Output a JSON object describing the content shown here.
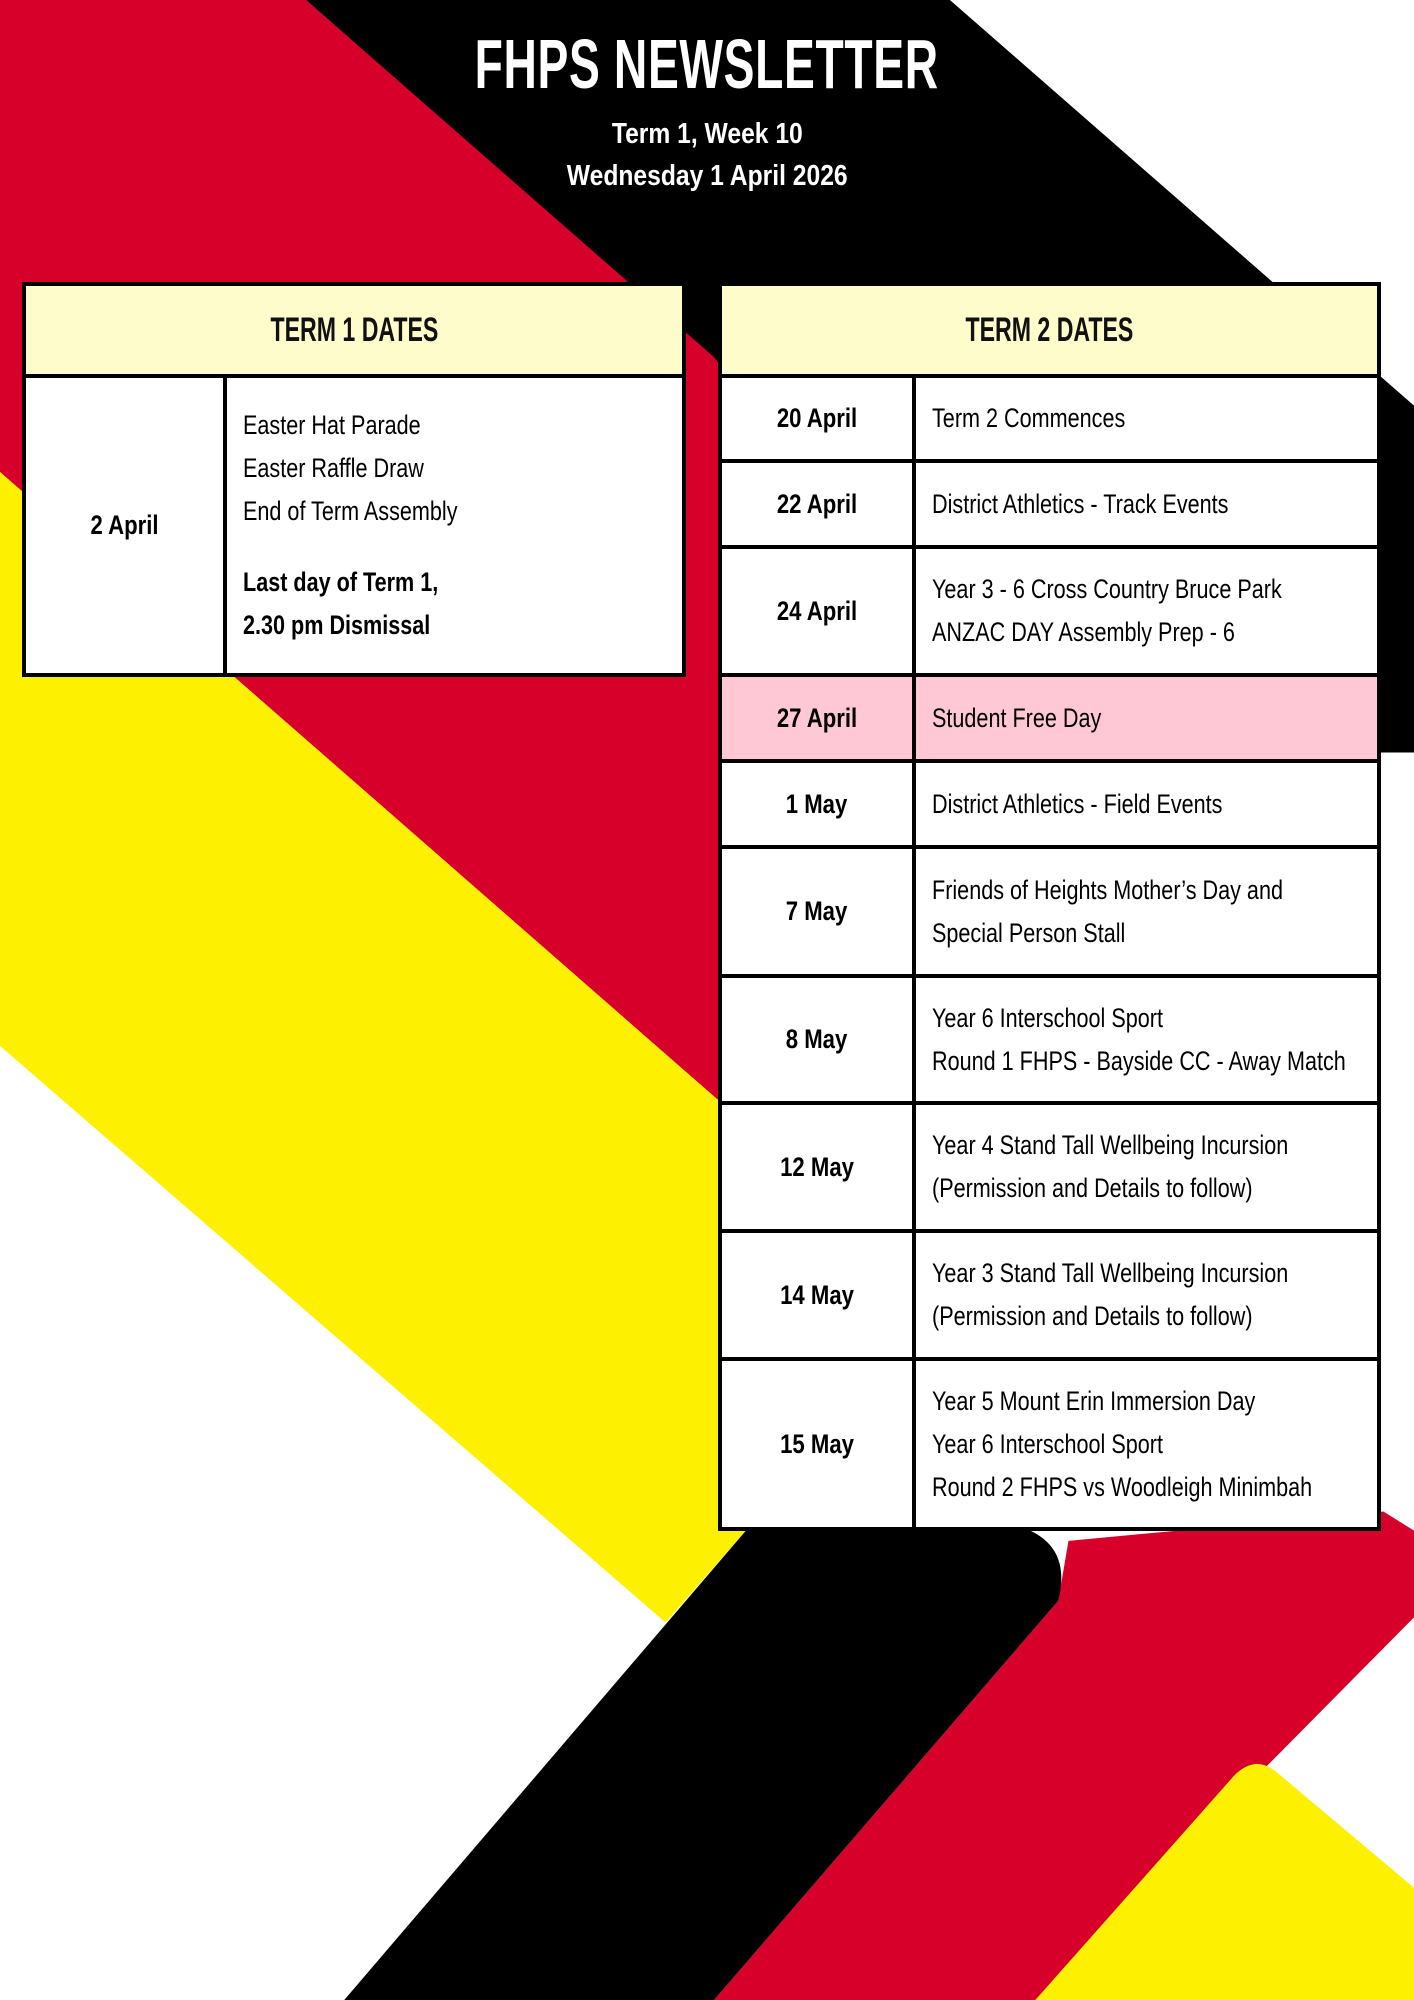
{
  "colors": {
    "red": "#d7002b",
    "black": "#000000",
    "yellow": "#fdf000",
    "header_bg": "#fffccc",
    "highlight": "#ffc8d4"
  },
  "header": {
    "title": "FHPS NEWSLETTER",
    "term": "Term  1, Week 10",
    "date": "Wednesday 1 April  2026"
  },
  "term1": {
    "title": "TERM 1 DATES",
    "rows": [
      {
        "date": "2 April",
        "events": [
          "Easter Hat Parade",
          "Easter Raffle Draw",
          "End of Term Assembly"
        ],
        "notes": [
          "Last day of Term 1,",
          "2.30 pm Dismissal"
        ]
      }
    ]
  },
  "term2": {
    "title": "TERM 2 DATES",
    "rows": [
      {
        "date": "20 April",
        "events": [
          "Term 2 Commences"
        ]
      },
      {
        "date": "22 April",
        "events": [
          "District Athletics - Track Events"
        ]
      },
      {
        "date": "24 April",
        "events": [
          "Year 3 - 6 Cross Country Bruce Park",
          "ANZAC DAY Assembly Prep - 6"
        ]
      },
      {
        "date": "27 April",
        "events": [
          "Student Free Day"
        ],
        "highlight": true
      },
      {
        "date": "1 May",
        "events": [
          "District Athletics - Field Events"
        ]
      },
      {
        "date": "7 May",
        "events": [
          "Friends of Heights Mother’s Day and",
          "Special Person Stall"
        ]
      },
      {
        "date": "8 May",
        "events": [
          "Year 6 Interschool Sport",
          "Round 1 FHPS - Bayside CC - Away Match"
        ]
      },
      {
        "date": "12 May",
        "events": [
          "Year 4 Stand Tall Wellbeing Incursion",
          "(Permission and Details to follow)"
        ]
      },
      {
        "date": "14 May",
        "events": [
          "Year 3 Stand Tall Wellbeing Incursion",
          "(Permission and Details to follow)"
        ]
      },
      {
        "date": "15 May",
        "events": [
          "Year 5 Mount Erin Immersion Day",
          "Year 6 Interschool Sport",
          "Round 2 FHPS vs Woodleigh Minimbah"
        ]
      }
    ]
  }
}
